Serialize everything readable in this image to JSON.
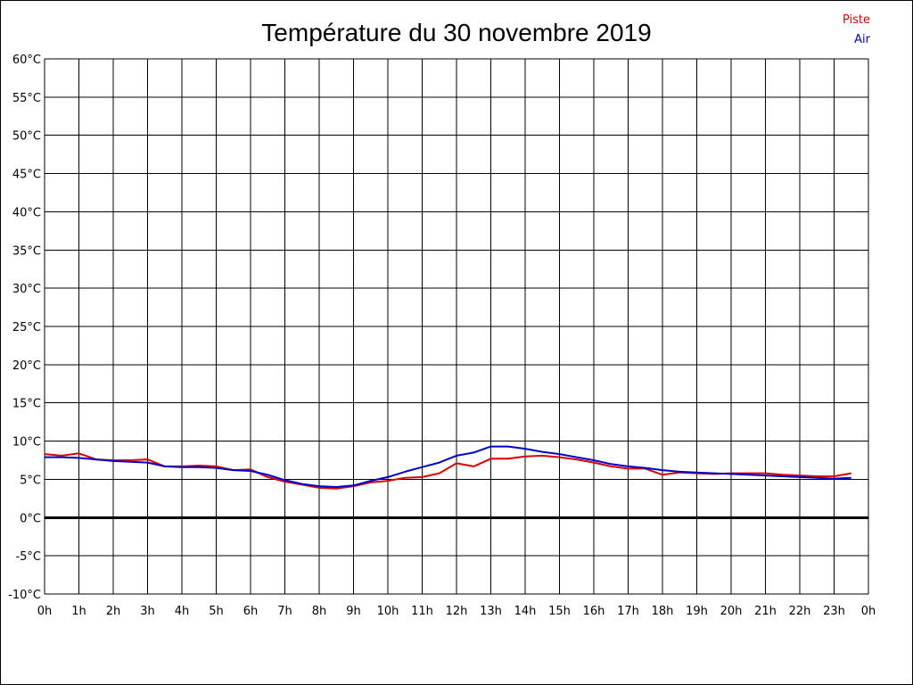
{
  "chart_data": {
    "type": "line",
    "title": "Température du 30 novembre 2019",
    "xlabel": "",
    "ylabel": "",
    "ylim": [
      -10,
      60
    ],
    "xlim": [
      0,
      24
    ],
    "grid": true,
    "legend_position": "top-right",
    "y_ticks": [
      "60°C",
      "55°C",
      "50°C",
      "45°C",
      "40°C",
      "35°C",
      "30°C",
      "25°C",
      "20°C",
      "15°C",
      "10°C",
      "5°C",
      "0°C",
      "-5°C",
      "-10°C"
    ],
    "x_ticks": [
      "0h",
      "1h",
      "2h",
      "3h",
      "4h",
      "5h",
      "6h",
      "7h",
      "8h",
      "9h",
      "10h",
      "11h",
      "12h",
      "13h",
      "14h",
      "15h",
      "16h",
      "17h",
      "18h",
      "19h",
      "20h",
      "21h",
      "22h",
      "23h",
      "0h"
    ],
    "x": [
      0,
      0.5,
      1,
      1.5,
      2,
      2.5,
      3,
      3.5,
      4,
      4.5,
      5,
      5.5,
      6,
      6.5,
      7,
      7.5,
      8,
      8.5,
      9,
      9.5,
      10,
      10.5,
      11,
      11.5,
      12,
      12.5,
      13,
      13.5,
      14,
      14.5,
      15,
      15.5,
      16,
      16.5,
      17,
      17.5,
      18,
      18.5,
      19,
      19.5,
      20,
      20.5,
      21,
      21.5,
      22,
      22.5,
      23,
      23.5
    ],
    "series": [
      {
        "name": "Piste",
        "color": "#dd0000",
        "values": [
          8.3,
          8.1,
          8.4,
          7.6,
          7.5,
          7.5,
          7.6,
          6.7,
          6.7,
          6.8,
          6.7,
          6.2,
          6.3,
          5.3,
          4.7,
          4.3,
          3.9,
          3.8,
          4.1,
          4.6,
          4.8,
          5.2,
          5.3,
          5.8,
          7.1,
          6.7,
          7.7,
          7.7,
          8.0,
          8.1,
          7.9,
          7.6,
          7.2,
          6.7,
          6.4,
          6.4,
          5.6,
          5.9,
          5.8,
          5.7,
          5.8,
          5.8,
          5.8,
          5.6,
          5.5,
          5.4,
          5.4,
          5.8
        ]
      },
      {
        "name": "Air",
        "color": "#0000cc",
        "values": [
          7.9,
          7.9,
          7.8,
          7.6,
          7.4,
          7.3,
          7.2,
          6.7,
          6.6,
          6.6,
          6.5,
          6.2,
          6.1,
          5.6,
          4.9,
          4.4,
          4.1,
          4.0,
          4.2,
          4.8,
          5.3,
          6.0,
          6.6,
          7.2,
          8.1,
          8.5,
          9.3,
          9.3,
          9.0,
          8.6,
          8.3,
          7.9,
          7.5,
          7.0,
          6.7,
          6.5,
          6.2,
          6.0,
          5.9,
          5.8,
          5.7,
          5.6,
          5.5,
          5.4,
          5.3,
          5.2,
          5.1,
          5.2
        ]
      }
    ]
  }
}
